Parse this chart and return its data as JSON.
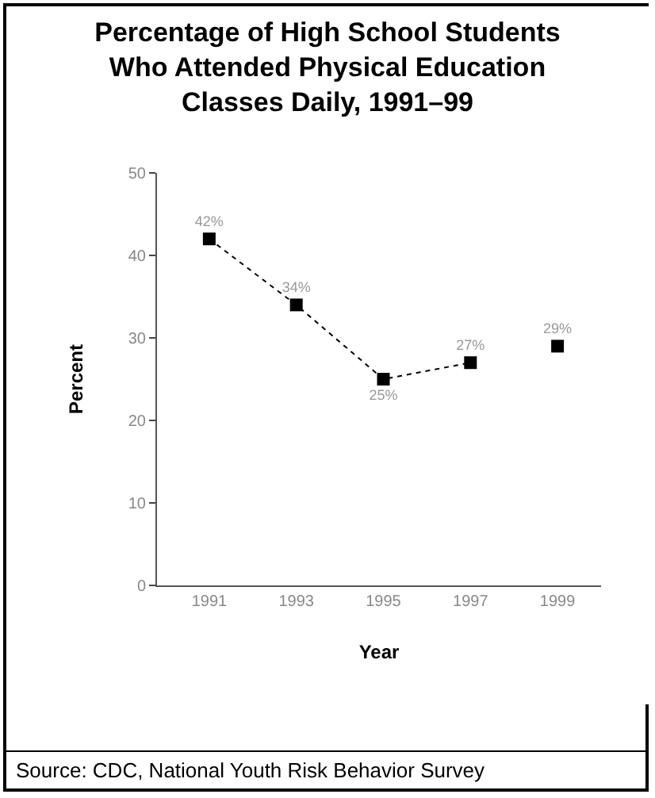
{
  "chart_data": {
    "type": "line",
    "title": "Percentage of High School Students Who Attended Physical Education Classes Daily, 1991–99",
    "xlabel": "Year",
    "ylabel": "Percent",
    "categories": [
      "1991",
      "1993",
      "1995",
      "1997",
      "1999"
    ],
    "series": [
      {
        "color": "#000000",
        "values": [
          42,
          34,
          25,
          27,
          null
        ],
        "value_labels": [
          "42%",
          "34%",
          "25%",
          "27%",
          null
        ]
      },
      {
        "type": "scatter",
        "color": "#000000",
        "values": [
          null,
          null,
          null,
          null,
          29
        ],
        "value_labels": [
          null,
          null,
          null,
          null,
          "29%"
        ]
      }
    ],
    "ylim": [
      0,
      50
    ],
    "yticks": [
      0,
      10,
      20,
      30,
      40,
      50
    ],
    "grid": false,
    "marker": "square",
    "line_style": "dotted",
    "annotations": [
      "Source: CDC, National Youth Risk Behavior Survey"
    ]
  }
}
